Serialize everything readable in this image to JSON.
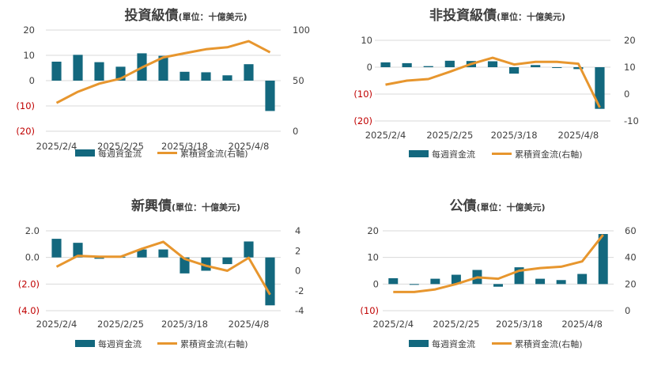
{
  "colors": {
    "bar": "#13687E",
    "line": "#E7962E",
    "grid": "#D9D9D9",
    "text": "#404040",
    "negative": "#C00000",
    "title": "#404040"
  },
  "chart_data": [
    {
      "type": "bar+line",
      "title": "投資級債",
      "subtitle": "(單位：十億美元)",
      "categories": [
        "2025/2/4",
        "2025/2/11",
        "2025/2/18",
        "2025/2/25",
        "2025/3/4",
        "2025/3/11",
        "2025/3/18",
        "2025/3/25",
        "2025/4/1",
        "2025/4/8",
        "2025/4/15"
      ],
      "x_tick_labels": [
        "2025/2/4",
        "2025/2/25",
        "2025/3/18",
        "2025/4/8"
      ],
      "series": [
        {
          "name": "每週資金流",
          "kind": "bar",
          "axis": "left",
          "values": [
            7.5,
            10.2,
            7.3,
            5.5,
            10.8,
            9.8,
            3.5,
            3.3,
            2.1,
            6.5,
            -12.0
          ]
        },
        {
          "name": "累積資金流(右軸)",
          "kind": "line",
          "axis": "right",
          "values": [
            28,
            39,
            47,
            52,
            63,
            73,
            77,
            81,
            83,
            89,
            78
          ]
        }
      ],
      "ylim_left": [
        -20,
        20
      ],
      "yticks_left": [
        20,
        10,
        0,
        -10,
        -20
      ],
      "ytick_labels_left": [
        "20",
        "10",
        "0",
        "(10)",
        "(20)"
      ],
      "ylim_right": [
        0,
        100
      ],
      "yticks_right": [
        100,
        50,
        0
      ],
      "ytick_labels_right": [
        "100",
        "50",
        "0"
      ],
      "grid": true,
      "legend": "bottom"
    },
    {
      "type": "bar+line",
      "title": "非投資級債",
      "subtitle": "(單位：十億美元)",
      "categories": [
        "2025/2/4",
        "2025/2/11",
        "2025/2/18",
        "2025/2/25",
        "2025/3/4",
        "2025/3/11",
        "2025/3/18",
        "2025/3/25",
        "2025/4/1",
        "2025/4/8",
        "2025/4/15"
      ],
      "x_tick_labels": [
        "2025/2/4",
        "2025/2/25",
        "2025/3/18",
        "2025/4/8"
      ],
      "series": [
        {
          "name": "每週資金流",
          "kind": "bar",
          "axis": "left",
          "values": [
            1.8,
            1.5,
            0.4,
            2.4,
            2.3,
            2.2,
            -2.4,
            0.8,
            -0.3,
            -0.7,
            -15.5
          ]
        },
        {
          "name": "累積資金流(右軸)",
          "kind": "line",
          "axis": "right",
          "values": [
            3.5,
            5.0,
            5.6,
            8.3,
            11.2,
            13.5,
            11.0,
            12.0,
            12.0,
            11.3,
            -5.0
          ]
        }
      ],
      "ylim_left": [
        -20,
        10
      ],
      "yticks_left": [
        10,
        0,
        -10,
        -20
      ],
      "ytick_labels_left": [
        "10",
        "0",
        "(10)",
        "(20)"
      ],
      "ylim_right": [
        -10,
        20
      ],
      "yticks_right": [
        20,
        10,
        0,
        -10
      ],
      "ytick_labels_right": [
        "20",
        "10",
        "0",
        "-10"
      ],
      "grid": true,
      "legend": "bottom"
    },
    {
      "type": "bar+line",
      "title": "新興債",
      "subtitle": "(單位：十億美元)",
      "categories": [
        "2025/2/4",
        "2025/2/11",
        "2025/2/18",
        "2025/2/25",
        "2025/3/4",
        "2025/3/11",
        "2025/3/18",
        "2025/3/25",
        "2025/4/1",
        "2025/4/8",
        "2025/4/15"
      ],
      "x_tick_labels": [
        "2025/2/4",
        "2025/2/25",
        "2025/3/18",
        "2025/4/8"
      ],
      "series": [
        {
          "name": "每週資金流",
          "kind": "bar",
          "axis": "left",
          "values": [
            1.4,
            1.1,
            -0.1,
            0.05,
            0.6,
            0.6,
            -1.2,
            -1.0,
            -0.5,
            1.2,
            -3.6
          ]
        },
        {
          "name": "累積資金流(右軸)",
          "kind": "line",
          "axis": "right",
          "values": [
            0.4,
            1.5,
            1.4,
            1.4,
            2.2,
            2.9,
            1.2,
            0.5,
            0.0,
            1.3,
            -2.4
          ]
        }
      ],
      "ylim_left": [
        -4,
        2
      ],
      "yticks_left": [
        2,
        0,
        -2,
        -4
      ],
      "ytick_labels_left": [
        "2.0",
        "0.0",
        "(2.0)",
        "(4.0)"
      ],
      "ylim_right": [
        -4,
        4
      ],
      "yticks_right": [
        4,
        2,
        0,
        -2,
        -4
      ],
      "ytick_labels_right": [
        "4",
        "2",
        "0",
        "-2",
        "-4"
      ],
      "grid": true,
      "legend": "bottom"
    },
    {
      "type": "bar+line",
      "title": "公債",
      "subtitle": "(單位：十億美元)",
      "categories": [
        "2025/2/4",
        "2025/2/11",
        "2025/2/18",
        "2025/2/25",
        "2025/3/4",
        "2025/3/11",
        "2025/3/18",
        "2025/3/25",
        "2025/4/1",
        "2025/4/8",
        "2025/4/15"
      ],
      "x_tick_labels": [
        "2025/2/4",
        "2025/2/25",
        "2025/3/18",
        "2025/4/8"
      ],
      "series": [
        {
          "name": "每週資金流",
          "kind": "bar",
          "axis": "left",
          "values": [
            2.2,
            0.0,
            2.0,
            3.5,
            5.3,
            -1.0,
            6.3,
            2.0,
            1.5,
            3.8,
            18.8
          ]
        },
        {
          "name": "累積資金流(右軸)",
          "kind": "line",
          "axis": "right",
          "values": [
            14,
            14,
            16,
            20,
            25,
            24,
            30,
            32,
            33,
            37,
            57
          ]
        }
      ],
      "ylim_left": [
        -10,
        20
      ],
      "yticks_left": [
        20,
        10,
        0,
        -10
      ],
      "ytick_labels_left": [
        "20",
        "10",
        "0",
        "(10)"
      ],
      "ylim_right": [
        0,
        60
      ],
      "yticks_right": [
        60,
        40,
        20,
        0
      ],
      "ytick_labels_right": [
        "60",
        "40",
        "20",
        "0"
      ],
      "grid": true,
      "legend": "bottom"
    }
  ]
}
